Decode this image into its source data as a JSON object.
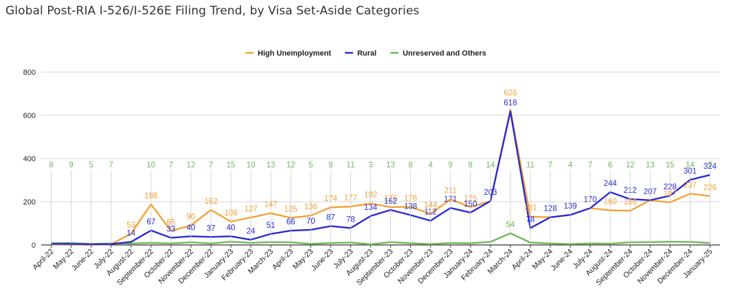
{
  "chart_data": {
    "type": "line",
    "title": "Global Post-RIA I-526/I-526E Filing Trend, by Visa Set-Aside Categories",
    "xlabel": "",
    "ylabel": "",
    "ylim": [
      0,
      800
    ],
    "yticks": [
      0,
      200,
      400,
      600,
      800
    ],
    "grid": true,
    "legend_position": "top",
    "categories": [
      "April-22",
      "May-22",
      "June-22",
      "July-22",
      "August-22",
      "September-22",
      "October-22",
      "November-22",
      "December-22",
      "January-23",
      "February-23",
      "March-23",
      "April-23",
      "May-23",
      "June-23",
      "July-23",
      "August-23",
      "September-23",
      "October-23",
      "November-23",
      "December-23",
      "January-24",
      "February-24",
      "March-24",
      "April-24",
      "May-24",
      "June-24",
      "July-24",
      "August-24",
      "September-24",
      "October-24",
      "November-24",
      "December-24",
      "January-25"
    ],
    "series": [
      {
        "name": "High Unemployment",
        "color": "#f4a233",
        "values": [
          2,
          3,
          1,
          3,
          53,
          188,
          65,
          90,
          162,
          108,
          127,
          147,
          125,
          136,
          174,
          177,
          192,
          175,
          176,
          144,
          211,
          175,
          203,
          626,
          131,
          128,
          139,
          170,
          160,
          158,
          207,
          197,
          237,
          226
        ],
        "labels": [
          "",
          "",
          "",
          "",
          "53",
          "188",
          "65",
          "90",
          "162",
          "108",
          "127",
          "147",
          "125",
          "136",
          "174",
          "177",
          "192",
          "175",
          "176",
          "144",
          "211",
          "175",
          "",
          "626",
          "131",
          "",
          "",
          "",
          "160",
          "158",
          "",
          "197",
          "237",
          "226"
        ]
      },
      {
        "name": "Rural",
        "color": "#2a2ad4",
        "values": [
          5,
          5,
          3,
          4,
          14,
          67,
          33,
          40,
          37,
          40,
          24,
          51,
          66,
          70,
          87,
          78,
          134,
          162,
          138,
          112,
          171,
          150,
          203,
          618,
          78,
          128,
          139,
          170,
          244,
          212,
          207,
          228,
          301,
          324
        ],
        "labels": [
          "",
          "",
          "",
          "",
          "14",
          "67",
          "33",
          "40",
          "37",
          "40",
          "24",
          "51",
          "66",
          "70",
          "87",
          "78",
          "134",
          "162",
          "138",
          "112",
          "171",
          "150",
          "203",
          "618",
          "78",
          "128",
          "139",
          "170",
          "244",
          "212",
          "207",
          "228",
          "301",
          "324"
        ]
      },
      {
        "name": "Unreserved and Others",
        "color": "#6fb85a",
        "values": [
          8,
          9,
          5,
          7,
          7,
          10,
          7,
          12,
          7,
          15,
          10,
          13,
          12,
          5,
          9,
          11,
          3,
          13,
          8,
          4,
          9,
          8,
          14,
          54,
          11,
          7,
          4,
          7,
          6,
          12,
          13,
          15,
          14,
          9
        ],
        "labels": [
          "8",
          "9",
          "5",
          "7",
          "",
          "10",
          "7",
          "12",
          "7",
          "15",
          "10",
          "13",
          "12",
          "5",
          "9",
          "11",
          "3",
          "13",
          "8",
          "4",
          "9",
          "8",
          "14",
          "54",
          "11",
          "7",
          "4",
          "7",
          "6",
          "12",
          "13",
          "15",
          "14",
          "9"
        ]
      }
    ]
  }
}
